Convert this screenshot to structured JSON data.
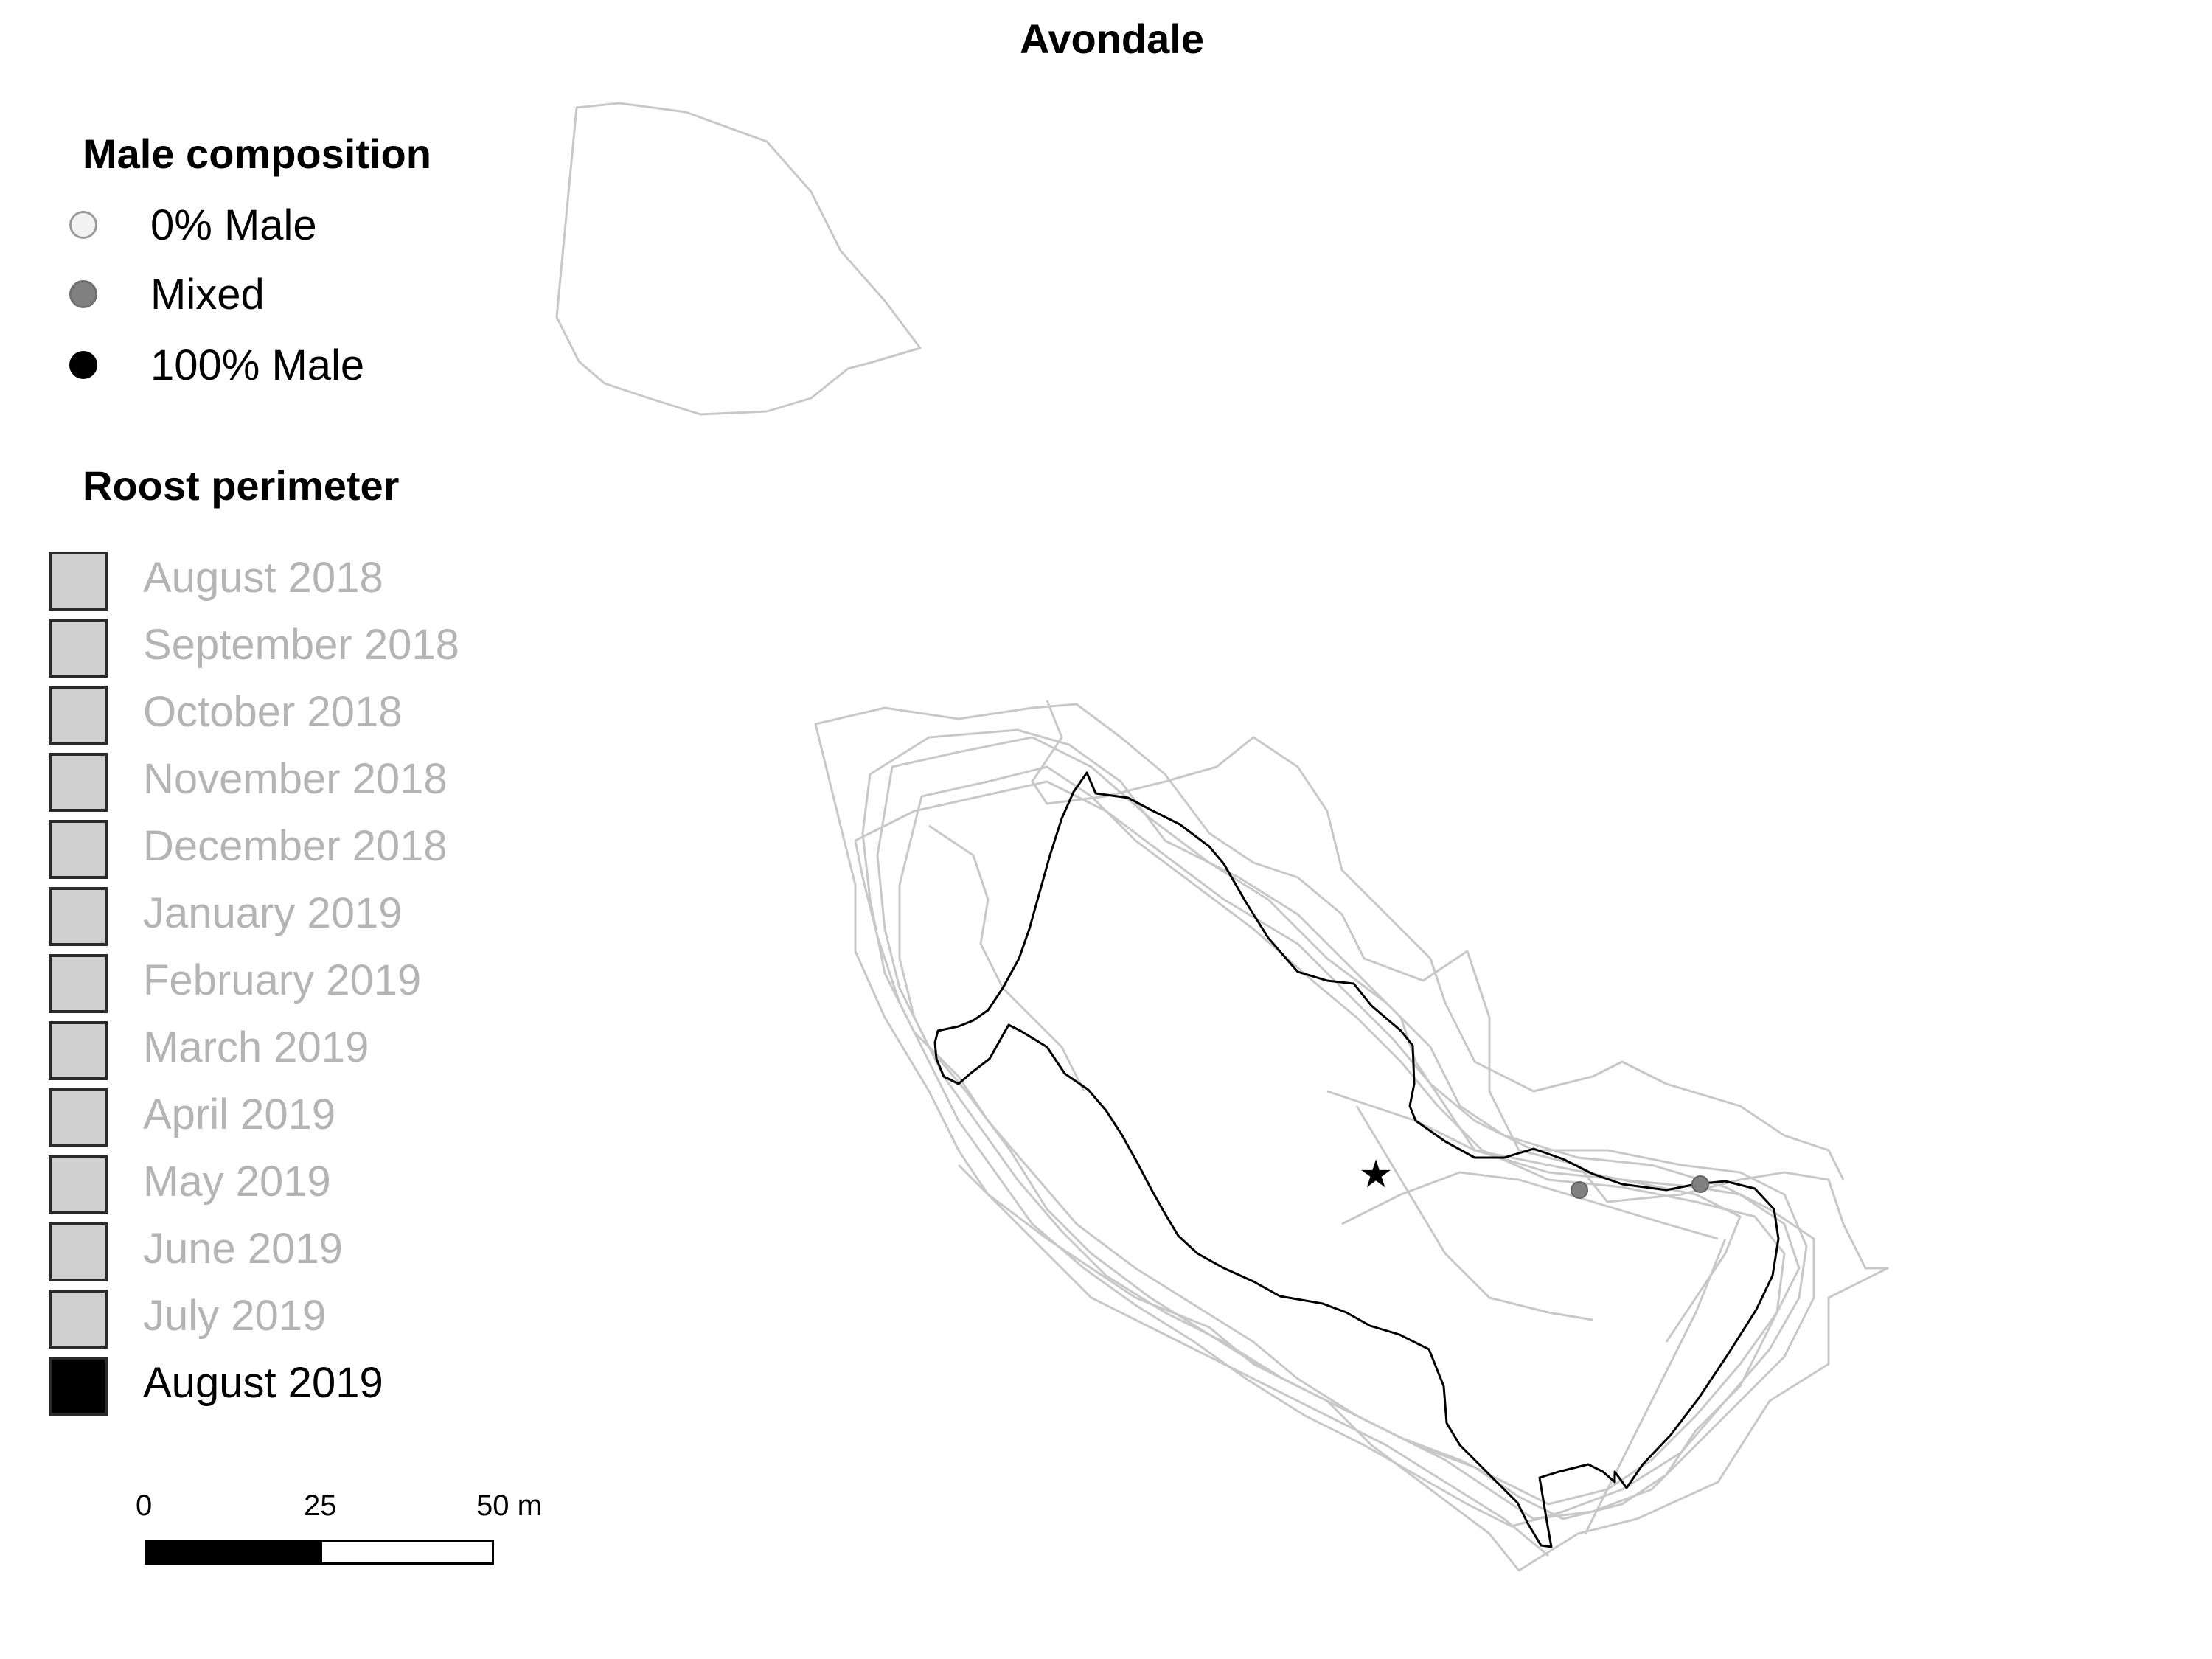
{
  "title": "Avondale",
  "legend": {
    "composition_heading": "Male composition",
    "composition_items": [
      {
        "label": "0% Male",
        "color": "#f2f2f2"
      },
      {
        "label": "Mixed",
        "color": "#808080"
      },
      {
        "label": "100% Male",
        "color": "#000000"
      }
    ],
    "perimeter_heading": "Roost perimeter",
    "perimeter_items": [
      {
        "label": "August 2018",
        "current": false
      },
      {
        "label": "September 2018",
        "current": false
      },
      {
        "label": "October 2018",
        "current": false
      },
      {
        "label": "November 2018",
        "current": false
      },
      {
        "label": "December 2018",
        "current": false
      },
      {
        "label": "January 2019",
        "current": false
      },
      {
        "label": "February 2019",
        "current": false
      },
      {
        "label": "March 2019",
        "current": false
      },
      {
        "label": "April 2019",
        "current": false
      },
      {
        "label": "May 2019",
        "current": false
      },
      {
        "label": "June 2019",
        "current": false
      },
      {
        "label": "July 2019",
        "current": false
      },
      {
        "label": "August 2019",
        "current": true
      }
    ]
  },
  "scalebar": {
    "labels": [
      "0",
      "25",
      "50 m"
    ]
  },
  "colors": {
    "past_perimeter": "#c8c8c8",
    "current_perimeter": "#000000",
    "mixed_marker": "#808080"
  },
  "icons": {
    "roost_centre": "star-icon"
  }
}
